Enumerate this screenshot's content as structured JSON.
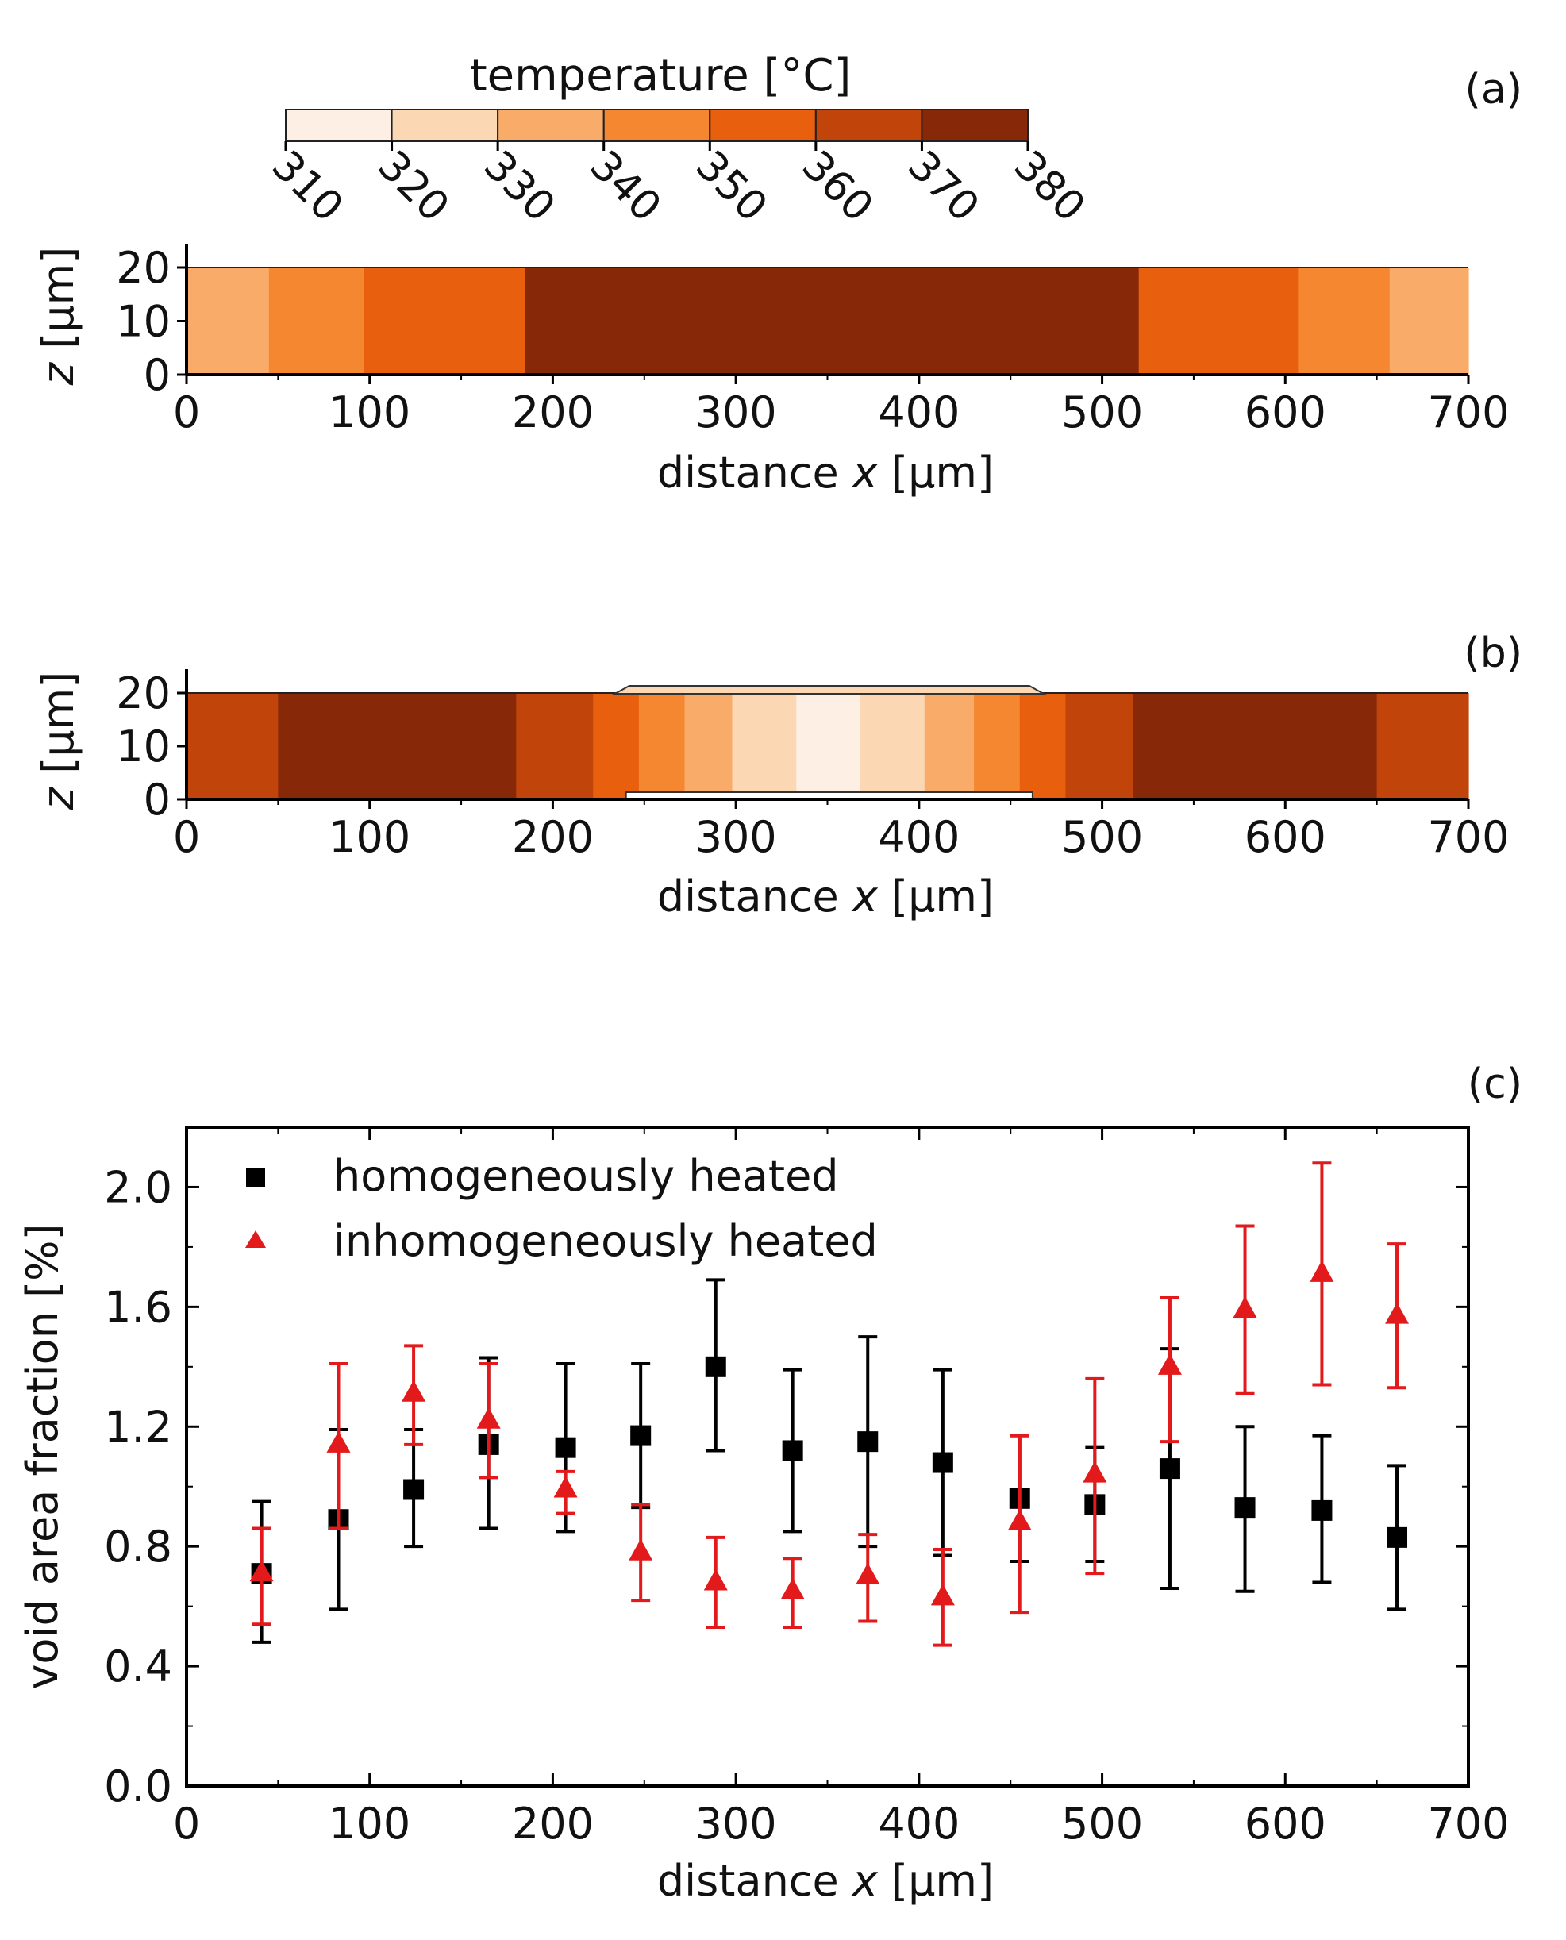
{
  "colorbar": {
    "title": "temperature [°C]",
    "ticks": [
      "310",
      "320",
      "330",
      "340",
      "350",
      "360",
      "370",
      "380"
    ],
    "colors": [
      "#fdefe3",
      "#fbd7b4",
      "#f9ac6a",
      "#f58731",
      "#e8600e",
      "#c1440a",
      "#872909"
    ]
  },
  "chart_data": [
    {
      "type": "heatmap",
      "panel": "(a)",
      "xlabel_main": "distance ",
      "xlabel_var": "x",
      "xlabel_unit": " [µm]",
      "ylabel_var": "z",
      "ylabel_unit": " [µm]",
      "xlim": [
        0,
        700
      ],
      "ylim": [
        0,
        20
      ],
      "xticks": [
        "0",
        "100",
        "200",
        "300",
        "400",
        "500",
        "600",
        "700"
      ],
      "yticks": [
        "0",
        "10",
        "20"
      ],
      "bands": [
        {
          "x0": 0,
          "x1": 45,
          "level": 2
        },
        {
          "x0": 45,
          "x1": 97,
          "level": 3
        },
        {
          "x0": 97,
          "x1": 185,
          "level": 4
        },
        {
          "x0": 185,
          "x1": 520,
          "level": 6
        },
        {
          "x0": 520,
          "x1": 607,
          "level": 4
        },
        {
          "x0": 607,
          "x1": 657,
          "level": 3
        },
        {
          "x0": 657,
          "x1": 700,
          "level": 2
        }
      ]
    },
    {
      "type": "heatmap",
      "panel": "(b)",
      "xlabel_main": "distance ",
      "xlabel_var": "x",
      "xlabel_unit": " [µm]",
      "ylabel_var": "z",
      "ylabel_unit": " [µm]",
      "xlim": [
        0,
        700
      ],
      "ylim": [
        0,
        20
      ],
      "xticks": [
        "0",
        "100",
        "200",
        "300",
        "400",
        "500",
        "600",
        "700"
      ],
      "yticks": [
        "0",
        "10",
        "20"
      ],
      "bands": [
        {
          "x0": 0,
          "x1": 50,
          "level": 5
        },
        {
          "x0": 50,
          "x1": 180,
          "level": 6
        },
        {
          "x0": 180,
          "x1": 222,
          "level": 5
        },
        {
          "x0": 222,
          "x1": 247,
          "level": 4
        },
        {
          "x0": 247,
          "x1": 272,
          "level": 3
        },
        {
          "x0": 272,
          "x1": 298,
          "level": 2
        },
        {
          "x0": 298,
          "x1": 333,
          "level": 1
        },
        {
          "x0": 333,
          "x1": 368,
          "level": 0
        },
        {
          "x0": 368,
          "x1": 403,
          "level": 1
        },
        {
          "x0": 403,
          "x1": 430,
          "level": 2
        },
        {
          "x0": 430,
          "x1": 455,
          "level": 3
        },
        {
          "x0": 455,
          "x1": 480,
          "level": 4
        },
        {
          "x0": 480,
          "x1": 517,
          "level": 5
        },
        {
          "x0": 517,
          "x1": 650,
          "level": 6
        },
        {
          "x0": 650,
          "x1": 700,
          "level": 5
        }
      ]
    },
    {
      "type": "scatter",
      "panel": "(c)",
      "xlabel_main": "distance ",
      "xlabel_var": "x",
      "xlabel_unit": " [µm]",
      "ylabel": "void area fraction [%]",
      "xlim": [
        0,
        700
      ],
      "ylim": [
        0,
        2.2
      ],
      "xticks": [
        "0",
        "100",
        "200",
        "300",
        "400",
        "500",
        "600",
        "700"
      ],
      "yticks": [
        "0.0",
        "0.4",
        "0.8",
        "1.2",
        "1.6",
        "2.0"
      ],
      "legend_position": "top-left",
      "series": [
        {
          "name": "homogeneously heated",
          "marker": "square",
          "color": "#000000",
          "x": [
            41,
            83,
            124,
            165,
            207,
            248,
            289,
            331,
            372,
            413,
            455,
            496,
            537,
            578,
            620,
            661
          ],
          "y": [
            0.71,
            0.89,
            0.99,
            1.14,
            1.13,
            1.17,
            1.4,
            1.12,
            1.15,
            1.08,
            0.96,
            0.94,
            1.06,
            0.93,
            0.92,
            0.83
          ],
          "err_low": [
            0.48,
            0.59,
            0.8,
            0.86,
            0.85,
            0.93,
            1.12,
            0.85,
            0.8,
            0.77,
            0.75,
            0.75,
            0.66,
            0.65,
            0.68,
            0.59
          ],
          "err_high": [
            0.95,
            1.19,
            1.19,
            1.43,
            1.41,
            1.41,
            1.69,
            1.39,
            1.5,
            1.39,
            1.17,
            1.13,
            1.46,
            1.2,
            1.17,
            1.07
          ]
        },
        {
          "name": "inhomogeneously heated",
          "marker": "triangle",
          "color": "#e31a1c",
          "x": [
            41,
            83,
            124,
            165,
            207,
            248,
            289,
            331,
            372,
            413,
            455,
            496,
            537,
            578,
            620,
            661
          ],
          "y": [
            0.71,
            1.14,
            1.31,
            1.22,
            0.99,
            0.78,
            0.68,
            0.65,
            0.7,
            0.63,
            0.88,
            1.04,
            1.4,
            1.59,
            1.71,
            1.57
          ],
          "err_low": [
            0.54,
            0.86,
            1.14,
            1.03,
            0.91,
            0.62,
            0.53,
            0.53,
            0.55,
            0.47,
            0.58,
            0.71,
            1.15,
            1.31,
            1.34,
            1.33
          ],
          "err_high": [
            0.86,
            1.41,
            1.47,
            1.41,
            1.05,
            0.94,
            0.83,
            0.76,
            0.84,
            0.79,
            1.17,
            1.36,
            1.63,
            1.87,
            2.08,
            1.81
          ]
        }
      ]
    }
  ]
}
